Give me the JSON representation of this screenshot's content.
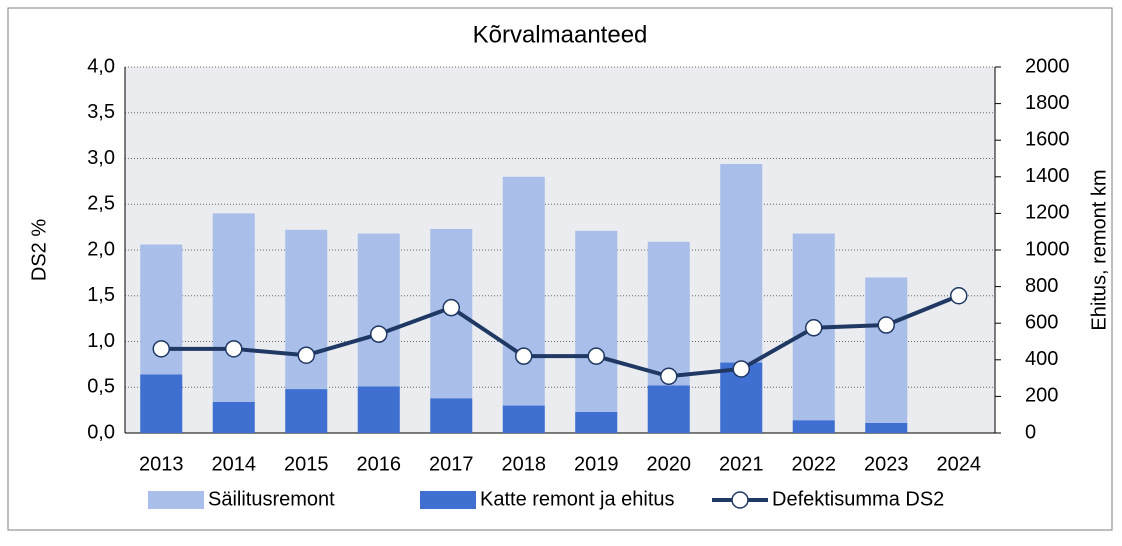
{
  "chart_data": {
    "type": "bar",
    "title": "Kõrvalmaanteed",
    "ylabel": "DS2  %",
    "y2label": "Ehitus,  remont km",
    "categories": [
      "2013",
      "2014",
      "2015",
      "2016",
      "2017",
      "2018",
      "2019",
      "2020",
      "2021",
      "2022",
      "2023",
      "2024"
    ],
    "series": [
      {
        "name": "Säilitusremont",
        "type": "bar",
        "axis": "y2",
        "stack": true,
        "color": "#a9bfea",
        "values": [
          710,
          1030,
          870,
          835,
          925,
          1250,
          990,
          785,
          1085,
          1020,
          795,
          null
        ]
      },
      {
        "name": "Katte remont ja ehitus",
        "type": "bar",
        "axis": "y2",
        "stack": true,
        "color": "#3e6fd1",
        "values": [
          320,
          170,
          240,
          255,
          190,
          150,
          115,
          260,
          385,
          70,
          55,
          null
        ]
      },
      {
        "name": "Defektisumma DS2",
        "type": "line",
        "color": "#1f3864",
        "values": [
          0.92,
          0.92,
          0.85,
          1.08,
          1.37,
          0.84,
          0.84,
          0.62,
          0.7,
          1.15,
          1.18,
          1.5
        ]
      }
    ],
    "ylim": [
      0,
      4
    ],
    "yticks": [
      {
        "value": 0,
        "label": "0,0"
      },
      {
        "value": 0.5,
        "label": "0,5"
      },
      {
        "value": 1,
        "label": "1,0"
      },
      {
        "value": 1.5,
        "label": "1,5"
      },
      {
        "value": 2,
        "label": "2,0"
      },
      {
        "value": 2.5,
        "label": "2,5"
      },
      {
        "value": 3,
        "label": "3,0"
      },
      {
        "value": 3.5,
        "label": "3,5"
      },
      {
        "value": 4,
        "label": "4,0"
      }
    ],
    "y2lim": [
      0,
      2000
    ],
    "y2ticks": [
      0,
      200,
      400,
      600,
      800,
      1000,
      1200,
      1400,
      1600,
      1800,
      2000
    ],
    "grid": true,
    "legend": "bottom"
  }
}
